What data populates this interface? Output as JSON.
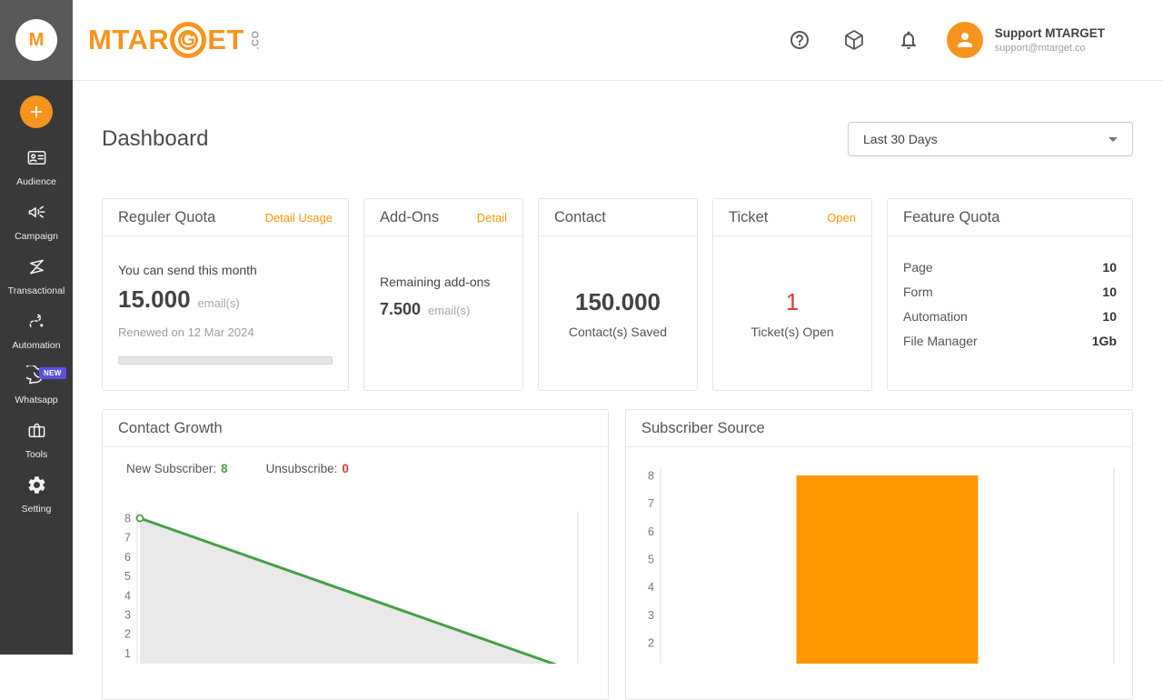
{
  "topbar": {
    "logo_left": "MTAR",
    "logo_g": "G",
    "logo_right": "ET",
    "logo_suffix": ".CO",
    "avatar_letter": "M",
    "icons": [
      "help-icon",
      "package-icon",
      "bell-icon",
      "person-icon"
    ],
    "user": {
      "name": "Support MTARGET",
      "email": "support@mtarget.co"
    }
  },
  "sidebar": {
    "items": [
      {
        "label": "Audience"
      },
      {
        "label": "Campaign"
      },
      {
        "label": "Transactional"
      },
      {
        "label": "Automation"
      },
      {
        "label": "Whatsapp",
        "badge": "NEW"
      },
      {
        "label": "Tools"
      },
      {
        "label": "Setting"
      }
    ]
  },
  "header": {
    "title": "Dashboard",
    "range_selector": "Last 30 Days"
  },
  "cards": {
    "regular_quota": {
      "title": "Reguler Quota",
      "link": "Detail Usage",
      "subtitle": "You can send this month",
      "value": "15.000",
      "unit": "email(s)",
      "renewed": "Renewed on 12 Mar 2024",
      "progress_percent": 0
    },
    "addons": {
      "title": "Add-Ons",
      "link": "Detail",
      "subtitle": "Remaining add-ons",
      "value": "7.500",
      "unit": "email(s)"
    },
    "contact": {
      "title": "Contact",
      "value": "150.000",
      "caption": "Contact(s) Saved"
    },
    "ticket": {
      "title": "Ticket",
      "link": "Open",
      "value": "1",
      "caption": "Ticket(s) Open"
    },
    "feature_quota": {
      "title": "Feature Quota",
      "rows": [
        {
          "label": "Page",
          "value": "10"
        },
        {
          "label": "Form",
          "value": "10"
        },
        {
          "label": "Automation",
          "value": "10"
        },
        {
          "label": "File Manager",
          "value": "1Gb"
        }
      ]
    }
  },
  "chart_data": [
    {
      "type": "area",
      "title": "Contact Growth",
      "legend": [
        {
          "label": "New Subscriber",
          "value": 8,
          "color": "#43a047"
        },
        {
          "label": "Unsubscribe",
          "value": 0,
          "color": "#e53935"
        }
      ],
      "x": [
        0,
        1
      ],
      "series": [
        {
          "name": "New Subscriber",
          "values": [
            8,
            0
          ],
          "color": "#43a047",
          "fill": "#e9e9e9"
        }
      ],
      "ylim": [
        0,
        8
      ],
      "yticks": [
        8,
        7,
        6,
        5,
        4,
        3,
        2,
        1
      ],
      "grid": "vertical-line-at-last-x",
      "legend_position": "top-left"
    },
    {
      "type": "bar",
      "title": "Subscriber Source",
      "categories": [
        ""
      ],
      "values": [
        8
      ],
      "bar_color": "#ff9800",
      "ylim": [
        0,
        8
      ],
      "yticks": [
        8,
        7,
        6,
        5,
        4,
        3,
        2
      ],
      "grid": "y-axis-and-right-border"
    }
  ],
  "colors": {
    "accent_orange": "#f7941d",
    "link_orange": "#ff9800",
    "green": "#43a047",
    "red": "#e53935",
    "badge_purple": "#5b51e0",
    "sidebar_dark": "#39393c",
    "sidebar_head": "#58585a",
    "axis_gray": "#dcdcdc",
    "tick_text": "#777777"
  }
}
